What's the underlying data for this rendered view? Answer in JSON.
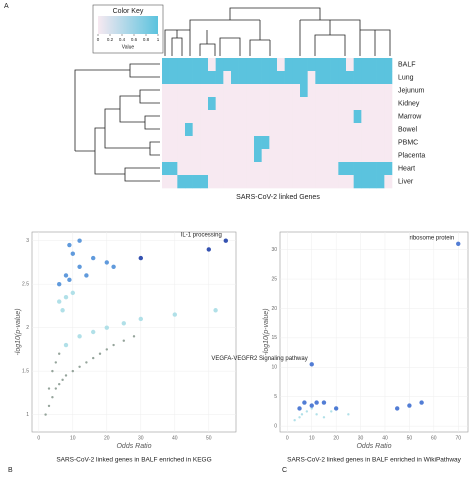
{
  "chart_data": [
    {
      "type": "heatmap",
      "panel": "A",
      "xlabel": "SARS-CoV-2 linked Genes",
      "rows": [
        "BALF",
        "Lung",
        "Jejunum",
        "Kidney",
        "Marrow",
        "Bowel",
        "PBMC",
        "Placenta",
        "Heart",
        "Liver"
      ],
      "legend_title": "Color Key",
      "legend_label": "Value",
      "legend_ticks": [
        0,
        0.2,
        0.4,
        0.6,
        0.8,
        1
      ],
      "colors": [
        "#f7e9f1",
        "#5bc3de"
      ],
      "values": [
        [
          1,
          1,
          1,
          1,
          1,
          1,
          0,
          1,
          1,
          1,
          1,
          1,
          1,
          1,
          1,
          0,
          1,
          1,
          1,
          1,
          1,
          1,
          1,
          1,
          0,
          1,
          1,
          1,
          1,
          1
        ],
        [
          1,
          1,
          1,
          1,
          1,
          1,
          1,
          1,
          0,
          1,
          1,
          1,
          1,
          1,
          1,
          1,
          1,
          1,
          1,
          0,
          1,
          1,
          1,
          1,
          1,
          1,
          1,
          1,
          1,
          1
        ],
        [
          0,
          0,
          0,
          0,
          0,
          0,
          0,
          0,
          0,
          0,
          0,
          0,
          0,
          0,
          0,
          0,
          0,
          0,
          1,
          0,
          0,
          0,
          0,
          0,
          0,
          0,
          0,
          0,
          0,
          0
        ],
        [
          0,
          0,
          0,
          0,
          0,
          0,
          1,
          0,
          0,
          0,
          0,
          0,
          0,
          0,
          0,
          0,
          0,
          0,
          0,
          0,
          0,
          0,
          0,
          0,
          0,
          0,
          0,
          0,
          0,
          0
        ],
        [
          0,
          0,
          0,
          0,
          0,
          0,
          0,
          0,
          0,
          0,
          0,
          0,
          0,
          0,
          0,
          0,
          0,
          0,
          0,
          0,
          0,
          0,
          0,
          0,
          0,
          1,
          0,
          0,
          0,
          0
        ],
        [
          0,
          0,
          0,
          1,
          0,
          0,
          0,
          0,
          0,
          0,
          0,
          0,
          0,
          0,
          0,
          0,
          0,
          0,
          0,
          0,
          0,
          0,
          0,
          0,
          0,
          0,
          0,
          0,
          0,
          0
        ],
        [
          0,
          0,
          0,
          0,
          0,
          0,
          0,
          0,
          0,
          0,
          0,
          0,
          1,
          1,
          0,
          0,
          0,
          0,
          0,
          0,
          0,
          0,
          0,
          0,
          0,
          0,
          0,
          0,
          0,
          0
        ],
        [
          0,
          0,
          0,
          0,
          0,
          0,
          0,
          0,
          0,
          0,
          0,
          0,
          1,
          0,
          0,
          0,
          0,
          0,
          0,
          0,
          0,
          0,
          0,
          0,
          0,
          0,
          0,
          0,
          0,
          0
        ],
        [
          1,
          1,
          0,
          0,
          0,
          0,
          0,
          0,
          0,
          0,
          0,
          0,
          0,
          0,
          0,
          0,
          0,
          0,
          0,
          0,
          0,
          0,
          0,
          1,
          1,
          1,
          1,
          1,
          1,
          1
        ],
        [
          0,
          0,
          1,
          1,
          1,
          1,
          0,
          0,
          0,
          0,
          0,
          0,
          0,
          0,
          0,
          0,
          0,
          0,
          0,
          0,
          0,
          0,
          0,
          0,
          0,
          1,
          1,
          1,
          1,
          0
        ]
      ]
    },
    {
      "type": "scatter",
      "panel": "B",
      "caption": "SARS-CoV-2 linked genes in BALF enriched in KEGG",
      "xlabel": "Odds Ratio",
      "ylabel": "-log10(p-value)",
      "xlim": [
        -2,
        58
      ],
      "xticks": [
        0,
        10,
        20,
        30,
        40,
        50
      ],
      "ylim": [
        0.8,
        3.1
      ],
      "yticks": [
        1,
        1.5,
        2,
        2.5,
        3
      ],
      "annotations": [
        {
          "text": "IL-1 processing",
          "x": 55,
          "y": 3.0
        }
      ],
      "series": [
        {
          "color": "#8a9a90",
          "x": [
            2,
            3,
            4,
            5,
            6,
            7,
            8,
            10,
            12,
            14,
            16,
            18,
            20,
            22,
            25,
            28,
            3,
            4,
            5,
            6
          ],
          "y": [
            1.0,
            1.1,
            1.2,
            1.3,
            1.35,
            1.4,
            1.45,
            1.5,
            1.55,
            1.6,
            1.65,
            1.7,
            1.75,
            1.8,
            1.85,
            1.9,
            1.3,
            1.5,
            1.6,
            1.7
          ]
        },
        {
          "color": "#a9dde6",
          "x": [
            8,
            12,
            16,
            20,
            25,
            30,
            40,
            52,
            7,
            6,
            8,
            10
          ],
          "y": [
            1.8,
            1.9,
            1.95,
            2.0,
            2.05,
            2.1,
            2.15,
            2.2,
            2.2,
            2.3,
            2.35,
            2.4
          ]
        },
        {
          "color": "#4f8fd8",
          "x": [
            6,
            8,
            9,
            12,
            14,
            16,
            20,
            22,
            10,
            9,
            12
          ],
          "y": [
            2.5,
            2.6,
            2.55,
            2.7,
            2.6,
            2.8,
            2.75,
            2.7,
            2.85,
            2.95,
            3.0
          ]
        },
        {
          "color": "#1f3fa8",
          "x": [
            30,
            50,
            55
          ],
          "y": [
            2.8,
            2.9,
            3.0
          ]
        }
      ]
    },
    {
      "type": "scatter",
      "panel": "C",
      "caption": "SARS-CoV-2 linked genes in BALF enriched in WikiPathway",
      "xlabel": "Odds Ratio",
      "ylabel": "-log10(p-value)",
      "xlim": [
        -3,
        74
      ],
      "xticks": [
        0,
        10,
        20,
        30,
        40,
        50,
        60,
        70
      ],
      "ylim": [
        -1,
        33
      ],
      "yticks": [
        0,
        5,
        10,
        15,
        20,
        25,
        30
      ],
      "annotations": [
        {
          "text": "ribosome protein",
          "x": 70,
          "y": 31
        },
        {
          "text": "VEGFA-VEGFR2 Signaling pathway",
          "x": 10,
          "y": 10.5
        }
      ],
      "series": [
        {
          "color": "#a9dde6",
          "x": [
            3,
            5,
            6,
            8,
            10,
            12,
            15,
            18,
            20,
            25
          ],
          "y": [
            1,
            1.5,
            2,
            2.5,
            3,
            2,
            1.5,
            2.5,
            3,
            2
          ]
        },
        {
          "color": "#3f6fd0",
          "x": [
            5,
            7,
            10,
            12,
            15,
            20,
            45,
            50,
            55,
            10,
            70
          ],
          "y": [
            3,
            4,
            3.5,
            4,
            4,
            3,
            3,
            3.5,
            4,
            10.5,
            31
          ]
        }
      ]
    }
  ]
}
